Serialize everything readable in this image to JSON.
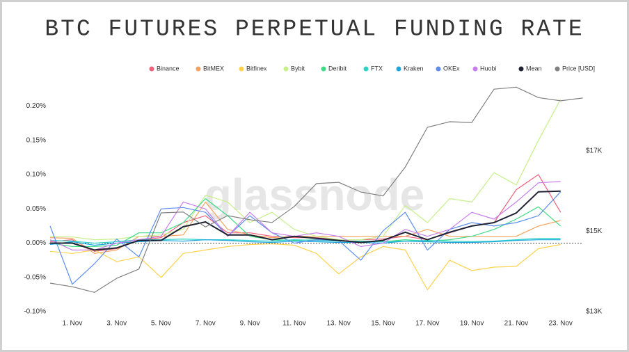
{
  "chart_data": {
    "type": "line",
    "title": "BTC FUTURES PERPETUAL FUNDING RATE",
    "watermark": "glassnode",
    "categories": [
      null,
      "1. Nov",
      null,
      "3. Nov",
      null,
      "5. Nov",
      null,
      "7. Nov",
      null,
      "9. Nov",
      null,
      "11. Nov",
      null,
      "13. Nov",
      null,
      "15. Nov",
      null,
      "17. Nov",
      null,
      "19. Nov",
      null,
      "21. Nov",
      null,
      "23. Nov",
      null
    ],
    "ylim": [
      -0.1,
      0.23
    ],
    "yticks": [
      {
        "value": -0.1,
        "label": "-0.10%"
      },
      {
        "value": -0.05,
        "label": "-0.05%"
      },
      {
        "value": 0,
        "label": "0.00%"
      },
      {
        "value": 0.05,
        "label": "0.05%"
      },
      {
        "value": 0.1,
        "label": "0.10%"
      },
      {
        "value": 0.15,
        "label": "0.15%"
      },
      {
        "value": 0.2,
        "label": "0.20%"
      }
    ],
    "y2lim": [
      13000,
      18630
    ],
    "y2ticks": [
      {
        "value": 13000,
        "label": "$13K"
      },
      {
        "value": 15000,
        "label": "$15K"
      },
      {
        "value": 17000,
        "label": "$17K"
      }
    ],
    "series": [
      {
        "name": "Binance",
        "color": "#f0607a",
        "values": [
          0.002,
          0.005,
          -0.012,
          -0.008,
          0.004,
          0.008,
          0.03,
          0.04,
          0.015,
          0.015,
          0.01,
          0.008,
          0.008,
          0.005,
          0.005,
          0.006,
          0.01,
          0.005,
          0.015,
          0.025,
          0.03,
          0.078,
          0.1,
          0.045,
          null
        ]
      },
      {
        "name": "BitMEX",
        "color": "#f5a25d",
        "values": [
          0.008,
          0.007,
          -0.015,
          -0.01,
          0.01,
          0.01,
          0.012,
          0.06,
          0.02,
          0.012,
          0.008,
          0.01,
          0.01,
          0.01,
          0.01,
          0.01,
          0.01,
          0.02,
          0.01,
          0.01,
          0.01,
          0.01,
          0.025,
          0.033,
          null
        ]
      },
      {
        "name": "Bitfinex",
        "color": "#ffd24d",
        "values": [
          -0.012,
          -0.015,
          -0.01,
          -0.027,
          -0.02,
          -0.05,
          -0.015,
          -0.01,
          -0.005,
          -0.002,
          -0.001,
          -0.003,
          -0.015,
          -0.045,
          -0.02,
          -0.005,
          -0.01,
          -0.068,
          -0.025,
          -0.04,
          -0.035,
          -0.034,
          -0.008,
          -0.002,
          null
        ]
      },
      {
        "name": "Bybit",
        "color": "#c6f08a",
        "values": [
          0.01,
          0.009,
          0.005,
          0.006,
          0.01,
          0.012,
          0.02,
          0.07,
          0.06,
          0.03,
          0.045,
          0.02,
          0.01,
          0.005,
          0.005,
          0.01,
          0.055,
          0.03,
          0.065,
          0.06,
          0.103,
          0.085,
          0.15,
          0.21,
          null
        ]
      },
      {
        "name": "Deribit",
        "color": "#3ddc84",
        "values": [
          0.0,
          -0.005,
          -0.005,
          -0.003,
          0.015,
          0.015,
          0.03,
          0.065,
          0.04,
          0.01,
          0.005,
          0.004,
          0.005,
          0.003,
          0.002,
          0.002,
          0.005,
          0.003,
          0.005,
          0.01,
          0.02,
          0.035,
          0.053,
          0.025,
          null
        ]
      },
      {
        "name": "FTX",
        "color": "#2ed3c6",
        "values": [
          0.004,
          0.003,
          0,
          0.002,
          0.005,
          0.005,
          0.006,
          0.005,
          0.005,
          0.004,
          0.003,
          0.005,
          0.004,
          0.003,
          0.003,
          0.002,
          0.003,
          0.004,
          0.003,
          0.002,
          0.003,
          0.005,
          0.007,
          0.007,
          null
        ]
      },
      {
        "name": "Kraken",
        "color": "#1aa7e0",
        "values": [
          -0.002,
          0.002,
          -0.003,
          0.0,
          0.002,
          0.004,
          0.003,
          0.005,
          0.004,
          0.002,
          0.001,
          0.003,
          0.002,
          0.001,
          0.001,
          0.0,
          0.003,
          0.002,
          0.001,
          0.001,
          0.002,
          0.004,
          0.005,
          0.005,
          null
        ]
      },
      {
        "name": "OKEx",
        "color": "#5b8def",
        "values": [
          0.025,
          -0.06,
          -0.03,
          0.006,
          -0.02,
          0.05,
          0.052,
          0.045,
          0.01,
          0.04,
          0.015,
          0.0,
          0.005,
          0.004,
          -0.025,
          0.018,
          0.045,
          -0.01,
          0.02,
          0.03,
          0.025,
          0.03,
          0.04,
          0.075,
          null
        ]
      },
      {
        "name": "Huobi",
        "color": "#c77dec",
        "values": [
          0.005,
          -0.01,
          -0.01,
          0,
          0.005,
          0.01,
          0.06,
          0.05,
          0.01,
          0.045,
          0.015,
          0.01,
          0.015,
          0.01,
          -0.005,
          0.0,
          0.02,
          0.01,
          0.02,
          0.045,
          0.035,
          0.06,
          0.088,
          0.09,
          null
        ]
      },
      {
        "name": "Mean",
        "color": "#1f2233",
        "values": [
          0.0,
          0.0,
          -0.01,
          -0.007,
          0.004,
          0.004,
          0.024,
          0.031,
          0.012,
          0.012,
          0.005,
          0.01,
          0.007,
          0.004,
          0.001,
          0.004,
          0.016,
          0.005,
          0.016,
          0.025,
          0.03,
          0.044,
          0.075,
          0.076,
          null
        ]
      },
      {
        "name": "Price [USD]",
        "color": "#808080",
        "axis": "y2",
        "values": [
          13710,
          13620,
          13480,
          13830,
          14060,
          15460,
          15480,
          15110,
          15390,
          15290,
          15220,
          15620,
          16190,
          16220,
          15980,
          15880,
          16600,
          17590,
          17730,
          17710,
          18540,
          18590,
          18330,
          18250,
          18320
        ]
      }
    ]
  }
}
